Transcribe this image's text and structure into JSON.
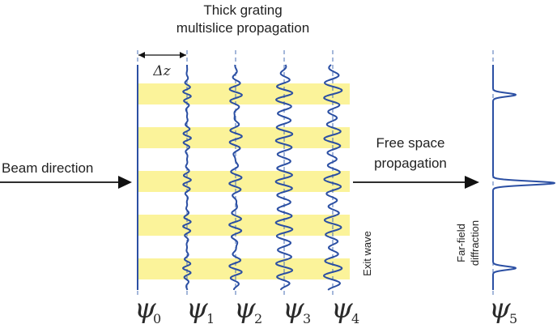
{
  "title": {
    "line1": "Thick grating",
    "line2": "multislice propagation"
  },
  "delta_label": "Δz",
  "beam_direction": "Beam direction",
  "free_space": {
    "line1": "Free space",
    "line2": "propagation"
  },
  "exit_wave": "Exit wave",
  "far_field": {
    "line1": "Far-field",
    "line2": "diffraction"
  },
  "psi": [
    {
      "symbol": "ψ",
      "sub": "0"
    },
    {
      "symbol": "ψ",
      "sub": "1"
    },
    {
      "symbol": "ψ",
      "sub": "2"
    },
    {
      "symbol": "ψ",
      "sub": "3"
    },
    {
      "symbol": "ψ",
      "sub": "4"
    },
    {
      "symbol": "ψ",
      "sub": "5"
    }
  ],
  "colors": {
    "grating": "#fbf39a",
    "wave": "#2b4fa3",
    "dashed": "#4a6fb5",
    "arrow": "#111111"
  }
}
